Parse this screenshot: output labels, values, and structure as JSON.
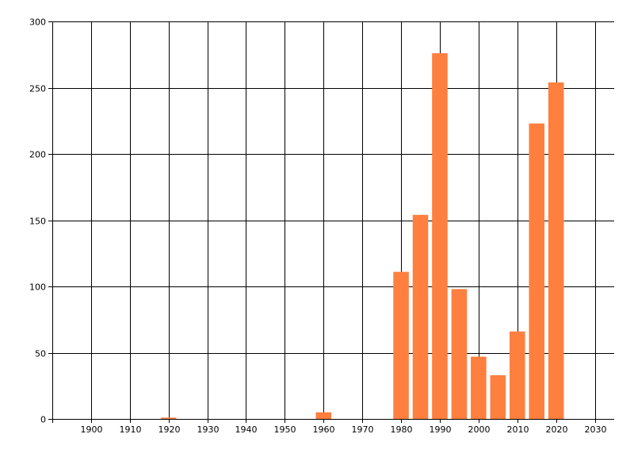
{
  "chart_data": {
    "type": "bar",
    "title": "",
    "xlabel": "",
    "ylabel": "",
    "xlim": [
      1890,
      2035
    ],
    "ylim": [
      0,
      300
    ],
    "x_ticks": [
      1900,
      1910,
      1920,
      1930,
      1940,
      1950,
      1960,
      1970,
      1980,
      1990,
      2000,
      2010,
      2020,
      2030
    ],
    "y_ticks": [
      0,
      50,
      100,
      150,
      200,
      250,
      300
    ],
    "grid": true,
    "legend": "none",
    "bar_color": "#ff7f3f",
    "grid_color": "#000000",
    "bar_width": 4,
    "x": [
      1920,
      1960,
      1980,
      1985,
      1990,
      1995,
      2000,
      2005,
      2010,
      2015,
      2020
    ],
    "values": [
      1,
      5,
      111,
      154,
      276,
      98,
      47,
      33,
      66,
      223,
      254
    ]
  }
}
